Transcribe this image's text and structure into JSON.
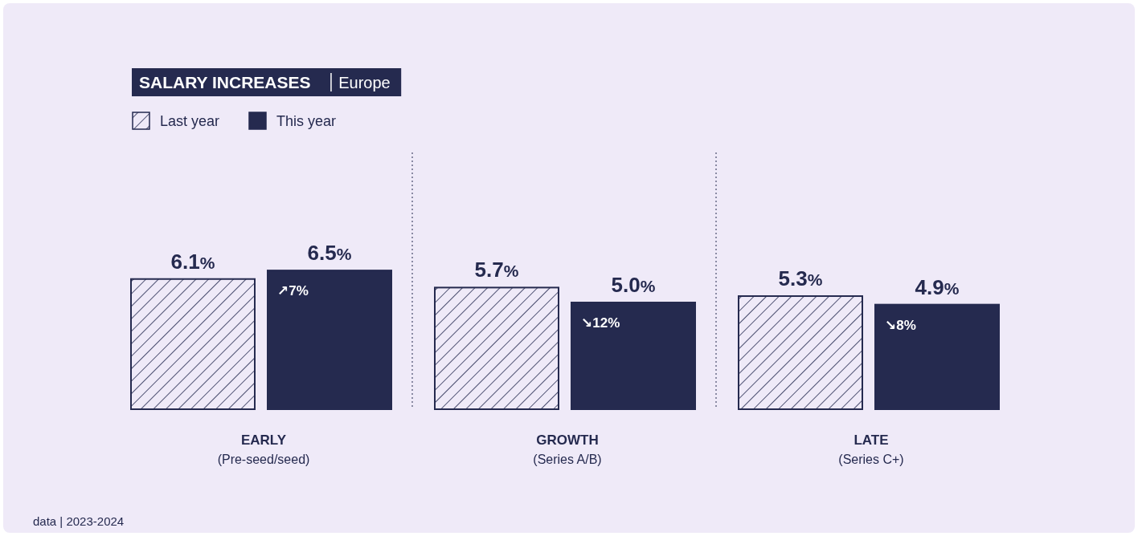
{
  "chart_data": {
    "type": "bar",
    "title": "SALARY INCREASES",
    "subtitle": "Europe",
    "categories": [
      "EARLY\n(Pre-seed/seed)",
      "GROWTH\n(Series A/B)",
      "LATE\n(Series C+)"
    ],
    "series": [
      {
        "name": "Last year",
        "color": "#252a4f",
        "values": [
          6.1,
          5.7,
          5.3
        ],
        "value_labels": [
          "6.1%",
          "5.7%",
          "5.3%"
        ]
      },
      {
        "name": "This year",
        "color": "#252a4f",
        "values": [
          6.5,
          5.0,
          4.9
        ],
        "value_labels": [
          "6.5%",
          "5.0%",
          "4.9%"
        ]
      }
    ],
    "annotations": [
      {
        "text": "↗7%",
        "x": "EARLY\n(Pre-seed/seed)",
        "y": 6.5
      },
      {
        "text": "↘12%",
        "x": "GROWTH\n(Series A/B)",
        "y": 5.0
      },
      {
        "text": "↘8%",
        "x": "LATE\n(Series C+)",
        "y": 4.9
      },
      "data | 2023-2024"
    ],
    "legend": "top left",
    "grid": false
  }
}
